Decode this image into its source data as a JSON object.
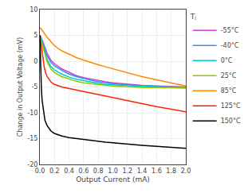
{
  "chart_data": {
    "type": "line",
    "xlabel": "Output Current (mA)",
    "ylabel": "Change in Output Voltage (mV)",
    "xlim": [
      0,
      2.0
    ],
    "ylim": [
      -20,
      10
    ],
    "xticks": [
      {
        "value": 0,
        "label": "0.0"
      },
      0.2,
      0.4,
      0.6,
      0.8,
      {
        "value": 1.0,
        "label": "1.0"
      },
      1.2,
      1.4,
      1.6,
      1.8,
      {
        "value": 2.0,
        "label": "2.0"
      }
    ],
    "yticks": [
      -20,
      -15,
      -10,
      -5,
      0,
      5,
      10
    ],
    "grid": true,
    "legend": "right",
    "legend_title": "Tⱼ",
    "series": [
      {
        "name": "-55°C",
        "color": "#cc44cc",
        "x": [
          0,
          0.01,
          0.02,
          0.04,
          0.06,
          0.08,
          0.1,
          0.15,
          0.2,
          0.3,
          0.4,
          0.5,
          0.6,
          0.7,
          0.8,
          0.9,
          1.0,
          1.2,
          1.4,
          1.6,
          1.8,
          2.0
        ],
        "values": [
          5.0,
          4.8,
          4.5,
          3.8,
          3.0,
          2.2,
          1.5,
          0.2,
          -0.5,
          -1.5,
          -2.2,
          -2.8,
          -3.2,
          -3.5,
          -3.8,
          -4.0,
          -4.2,
          -4.5,
          -4.7,
          -4.8,
          -4.9,
          -5.0
        ]
      },
      {
        "name": "-40°C",
        "color": "#4488ff",
        "x": [
          0,
          0.01,
          0.02,
          0.04,
          0.06,
          0.08,
          0.1,
          0.15,
          0.2,
          0.3,
          0.4,
          0.5,
          0.6,
          0.7,
          0.8,
          0.9,
          1.0,
          1.2,
          1.4,
          1.6,
          1.8,
          2.0
        ],
        "values": [
          5.0,
          4.8,
          4.4,
          3.5,
          2.7,
          1.8,
          1.0,
          -0.2,
          -0.9,
          -1.8,
          -2.5,
          -3.0,
          -3.4,
          -3.7,
          -4.0,
          -4.2,
          -4.4,
          -4.6,
          -4.8,
          -4.9,
          -5.0,
          -5.1
        ]
      },
      {
        "name": "0°C",
        "color": "#00cccc",
        "x": [
          0,
          0.01,
          0.02,
          0.04,
          0.06,
          0.08,
          0.1,
          0.15,
          0.2,
          0.3,
          0.4,
          0.5,
          0.6,
          0.7,
          0.8,
          0.9,
          1.0,
          1.2,
          1.4,
          1.6,
          1.8,
          2.0
        ],
        "values": [
          5.0,
          4.7,
          4.2,
          3.2,
          2.2,
          1.2,
          0.3,
          -1.0,
          -1.7,
          -2.5,
          -3.1,
          -3.5,
          -3.8,
          -4.1,
          -4.3,
          -4.5,
          -4.6,
          -4.8,
          -4.9,
          -5.0,
          -5.1,
          -5.2
        ]
      },
      {
        "name": "25°C",
        "color": "#88cc00",
        "x": [
          0,
          0.01,
          0.02,
          0.04,
          0.06,
          0.08,
          0.1,
          0.15,
          0.2,
          0.3,
          0.4,
          0.5,
          0.6,
          0.7,
          0.8,
          0.9,
          1.0,
          1.2,
          1.4,
          1.6,
          1.8,
          2.0
        ],
        "values": [
          5.0,
          4.6,
          4.0,
          2.8,
          1.8,
          0.8,
          -0.1,
          -1.5,
          -2.2,
          -3.0,
          -3.5,
          -3.9,
          -4.2,
          -4.4,
          -4.6,
          -4.7,
          -4.8,
          -5.0,
          -5.1,
          -5.1,
          -5.2,
          -5.2
        ]
      },
      {
        "name": "85°C",
        "color": "#ff8800",
        "x": [
          0,
          0.01,
          0.02,
          0.04,
          0.06,
          0.08,
          0.1,
          0.15,
          0.2,
          0.3,
          0.4,
          0.5,
          0.6,
          0.7,
          0.8,
          0.9,
          1.0,
          1.2,
          1.4,
          1.6,
          1.8,
          2.0
        ],
        "values": [
          6.5,
          6.4,
          6.2,
          5.8,
          5.4,
          5.0,
          4.6,
          3.8,
          3.0,
          2.0,
          1.3,
          0.7,
          0.2,
          -0.3,
          -0.7,
          -1.1,
          -1.5,
          -2.3,
          -3.0,
          -3.6,
          -4.2,
          -4.8
        ]
      },
      {
        "name": "125°C",
        "color": "#ff2200",
        "x": [
          0,
          0.01,
          0.02,
          0.04,
          0.06,
          0.08,
          0.1,
          0.15,
          0.2,
          0.3,
          0.4,
          0.5,
          0.6,
          0.7,
          0.8,
          0.9,
          1.0,
          1.2,
          1.4,
          1.6,
          1.8,
          2.0
        ],
        "values": [
          5.0,
          4.0,
          2.5,
          0.2,
          -1.2,
          -2.3,
          -3.0,
          -4.0,
          -4.5,
          -5.0,
          -5.3,
          -5.6,
          -5.9,
          -6.2,
          -6.5,
          -6.8,
          -7.1,
          -7.7,
          -8.3,
          -8.8,
          -9.3,
          -9.8
        ]
      },
      {
        "name": "150°C",
        "color": "#000000",
        "x": [
          0,
          0.005,
          0.01,
          0.02,
          0.03,
          0.05,
          0.07,
          0.1,
          0.15,
          0.2,
          0.3,
          0.4,
          0.5,
          0.6,
          0.7,
          0.8,
          0.9,
          1.0,
          1.2,
          1.4,
          1.6,
          1.8,
          2.0
        ],
        "values": [
          5.0,
          2.0,
          -1.0,
          -5.0,
          -7.5,
          -10.0,
          -11.5,
          -12.5,
          -13.5,
          -14.0,
          -14.5,
          -14.8,
          -15.0,
          -15.2,
          -15.4,
          -15.5,
          -15.7,
          -15.8,
          -16.1,
          -16.3,
          -16.5,
          -16.7,
          -16.9
        ]
      }
    ]
  }
}
